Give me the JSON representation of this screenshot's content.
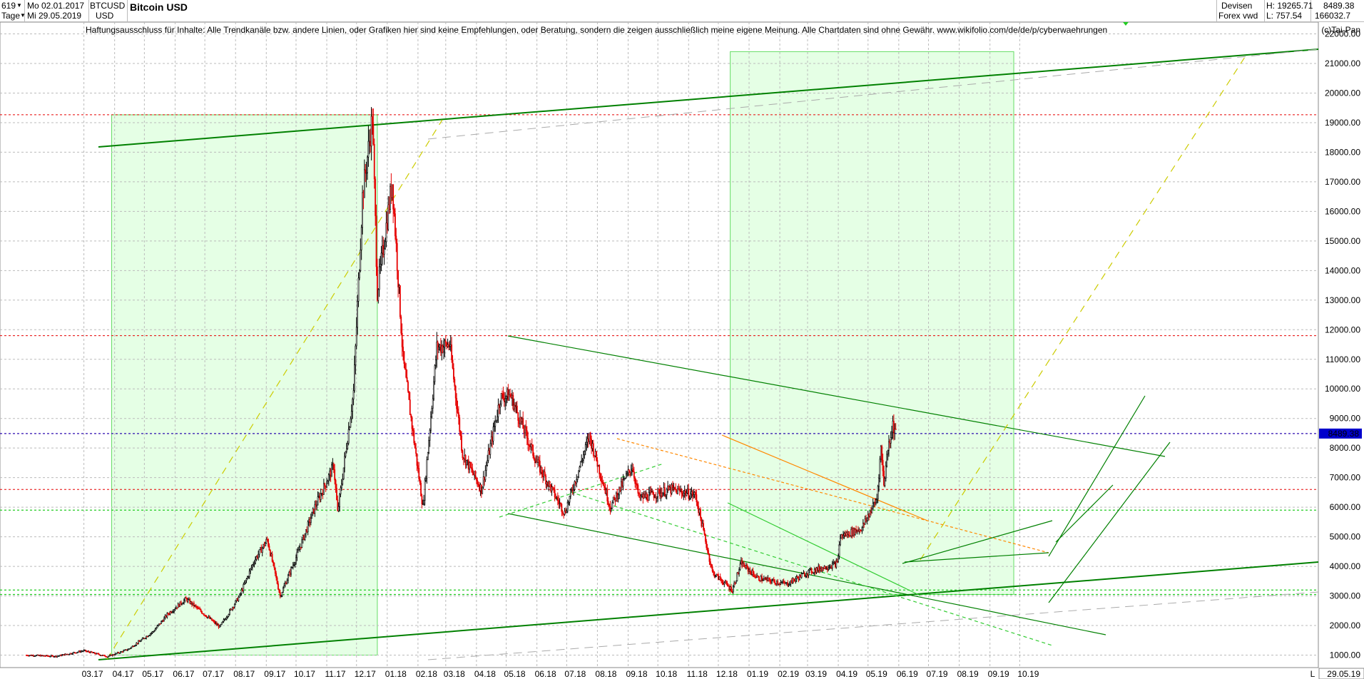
{
  "header": {
    "count": "619",
    "period": "Tage",
    "date_from": "Mo 02.01.2017",
    "date_to": "Mi 29.05.2019",
    "symbol": "BTCUSD",
    "currency": "USD",
    "title": "Bitcoin USD",
    "category": "Devisen",
    "exchange": "Forex vwd",
    "high": "H: 19265.71",
    "low": "L: 757.54",
    "last": "8489.38",
    "volume": "166032.7"
  },
  "disclaimer": "Haftungsausschluss für Inhalte: Alle Trendkanäle bzw. andere Linien, oder Grafiken hier sind keine Empfehlungen, oder Beratung, sondern die zeigen ausschließlich meine eigene Meinung. Alle Chartdaten sind ohne Gewähr.  www.wikifolio.com/de/de/p/cyberwaehrungen",
  "copyright": "(c)Tai-Pan",
  "price_tag": "8489.38",
  "end_date": "29.05.19",
  "scale_marker": "L",
  "colors": {
    "up": "#000000",
    "down": "#e60000",
    "trend": "#008000",
    "zone": "#ccffcc",
    "price_line": "#0000cc"
  },
  "chart_data": {
    "type": "candlestick",
    "ylim": [
      700,
      22600
    ],
    "yticks": [
      "1000.00",
      "2000.00",
      "3000.00",
      "4000.00",
      "5000.00",
      "6000.00",
      "7000.00",
      "8000.00",
      "9000.00",
      "10000.00",
      "11000.00",
      "12000.00",
      "13000.00",
      "14000.00",
      "15000.00",
      "16000.00",
      "17000.00",
      "18000.00",
      "19000.00",
      "20000.00",
      "21000.00",
      "22000.00"
    ],
    "xticks": [
      "03.17",
      "04.17",
      "05.17",
      "06.17",
      "07.17",
      "08.17",
      "09.17",
      "10.17",
      "11.17",
      "12.17",
      "01.18",
      "02.18",
      "03.18",
      "04.18",
      "05.18",
      "06.18",
      "07.18",
      "08.18",
      "09.18",
      "10.18",
      "11.18",
      "12.18",
      "01.19",
      "02.19",
      "03.19",
      "04.19",
      "05.19",
      "06.19",
      "07.19",
      "08.19",
      "09.19",
      "10.19"
    ],
    "price_path": [
      [
        "2017-01-02",
        1000
      ],
      [
        "2017-02-01",
        960
      ],
      [
        "2017-03-01",
        1150
      ],
      [
        "2017-03-25",
        950
      ],
      [
        "2017-04-15",
        1200
      ],
      [
        "2017-05-10",
        1800
      ],
      [
        "2017-05-25",
        2400
      ],
      [
        "2017-06-12",
        2900
      ],
      [
        "2017-07-16",
        1950
      ],
      [
        "2017-08-05",
        3000
      ],
      [
        "2017-08-20",
        4200
      ],
      [
        "2017-09-02",
        4900
      ],
      [
        "2017-09-15",
        3000
      ],
      [
        "2017-10-01",
        4300
      ],
      [
        "2017-10-20",
        6000
      ],
      [
        "2017-11-08",
        7400
      ],
      [
        "2017-11-12",
        5800
      ],
      [
        "2017-11-28",
        9900
      ],
      [
        "2017-12-07",
        16500
      ],
      [
        "2017-12-17",
        19200
      ],
      [
        "2017-12-22",
        13300
      ],
      [
        "2018-01-06",
        17000
      ],
      [
        "2018-01-17",
        11000
      ],
      [
        "2018-02-06",
        6000
      ],
      [
        "2018-02-20",
        11400
      ],
      [
        "2018-03-05",
        11500
      ],
      [
        "2018-03-18",
        7800
      ],
      [
        "2018-04-06",
        6600
      ],
      [
        "2018-04-25",
        9700
      ],
      [
        "2018-05-05",
        9800
      ],
      [
        "2018-06-01",
        7500
      ],
      [
        "2018-06-29",
        5800
      ],
      [
        "2018-07-24",
        8400
      ],
      [
        "2018-08-14",
        6000
      ],
      [
        "2018-09-05",
        7400
      ],
      [
        "2018-09-12",
        6300
      ],
      [
        "2018-10-15",
        6600
      ],
      [
        "2018-11-08",
        6400
      ],
      [
        "2018-11-25",
        3800
      ],
      [
        "2018-12-15",
        3200
      ],
      [
        "2018-12-24",
        4100
      ],
      [
        "2019-01-10",
        3600
      ],
      [
        "2019-02-08",
        3400
      ],
      [
        "2019-03-01",
        3800
      ],
      [
        "2019-03-31",
        4100
      ],
      [
        "2019-04-03",
        5000
      ],
      [
        "2019-04-25",
        5300
      ],
      [
        "2019-05-10",
        6300
      ],
      [
        "2019-05-14",
        8000
      ],
      [
        "2019-05-17",
        6800
      ],
      [
        "2019-05-21",
        8000
      ],
      [
        "2019-05-26",
        8800
      ],
      [
        "2019-05-29",
        8489.38
      ]
    ],
    "levels": {
      "red": [
        19265.71,
        11800,
        8489.38,
        6600
      ],
      "green": [
        5900,
        3050,
        3200
      ],
      "blue": [
        8489.38
      ]
    },
    "last_price": 8489.38,
    "high": 19265.71,
    "low": 757.54
  }
}
